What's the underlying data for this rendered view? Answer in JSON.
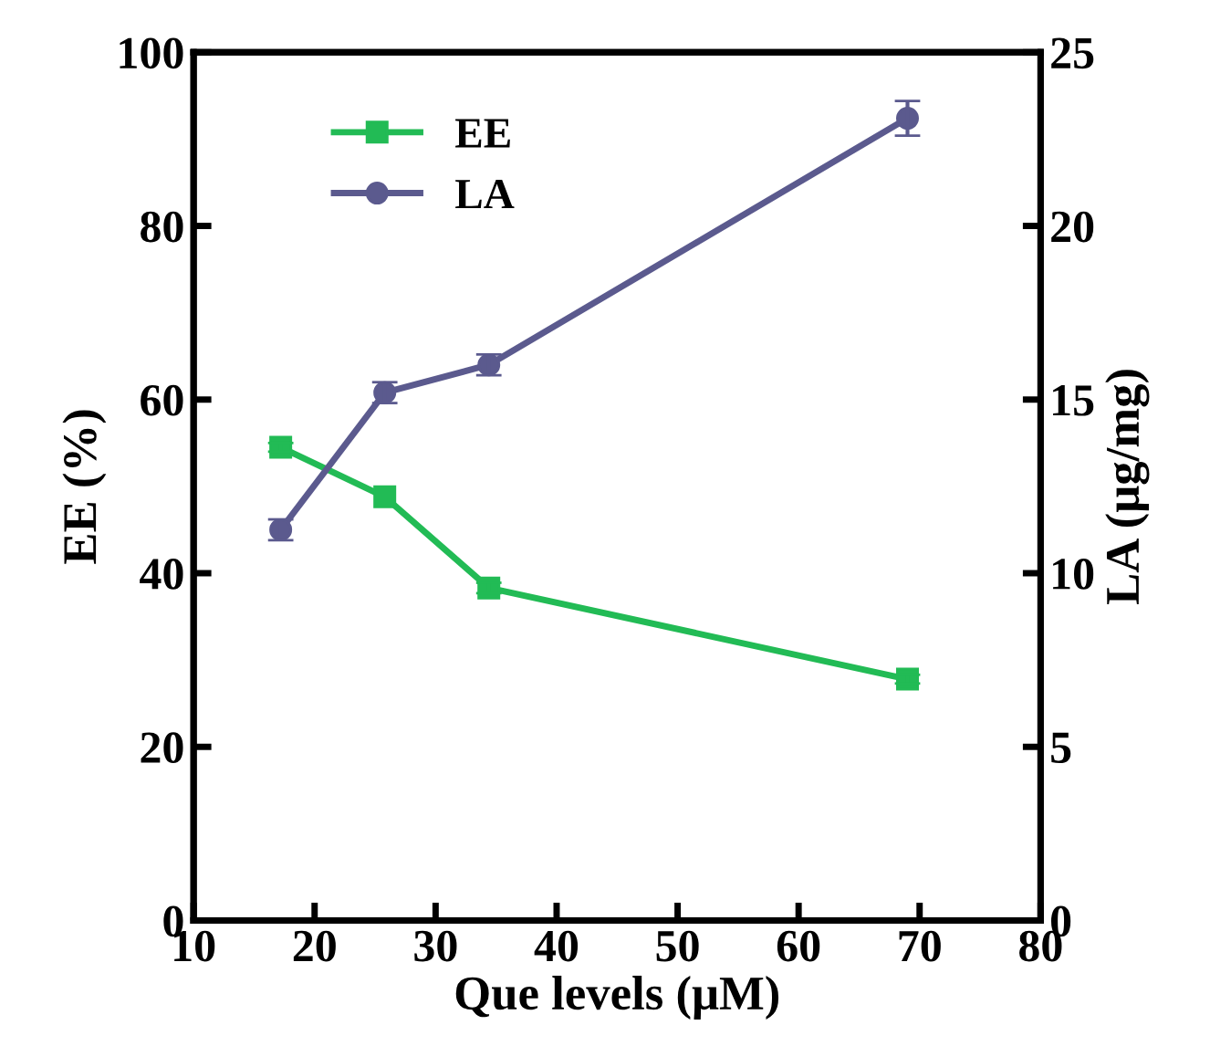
{
  "chart_data": {
    "type": "line",
    "xlabel": "Que levels (μM)",
    "ylabel": "EE (%)",
    "y2label": "LA (μg/mg)",
    "xlim": [
      10,
      80
    ],
    "xticks": [
      10,
      20,
      30,
      40,
      50,
      60,
      70,
      80
    ],
    "ylim": [
      0,
      100
    ],
    "yticks": [
      0,
      20,
      40,
      60,
      80,
      100
    ],
    "y2lim": [
      0,
      25
    ],
    "y2ticks": [
      0,
      5,
      10,
      15,
      20,
      25
    ],
    "legend": "top left",
    "grid": false,
    "series": [
      {
        "name": "EE",
        "color": "#22bb55",
        "marker": "square",
        "x": [
          17.2,
          25.8,
          34.4,
          69
        ],
        "values": [
          54.5,
          48.8,
          38.3,
          27.8
        ],
        "errors": [
          0.5,
          null,
          0.6,
          0.5
        ]
      },
      {
        "name": "LA",
        "color": "#5b5a8e",
        "marker": "circle",
        "axis": "y2",
        "x": [
          17.2,
          25.8,
          34.4,
          69
        ],
        "values": [
          11.25,
          15.2,
          16.0,
          23.1
        ],
        "errors": [
          0.3,
          0.3,
          0.3,
          0.5
        ]
      }
    ]
  }
}
